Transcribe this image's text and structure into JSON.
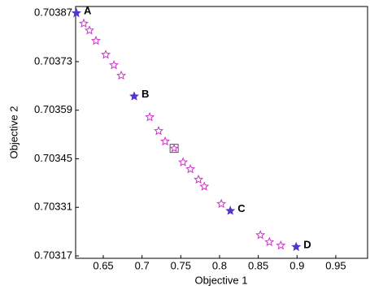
{
  "chart_data": {
    "type": "scatter",
    "xlabel": "Objective 1",
    "ylabel": "Objective 2",
    "xlim": [
      0.6143,
      0.991
    ],
    "ylim": [
      0.703163,
      0.703889
    ],
    "xticks": [
      0.65,
      0.7,
      0.75,
      0.8,
      0.85,
      0.9,
      0.95
    ],
    "yticks": [
      0.70317,
      0.70331,
      0.70345,
      0.70359,
      0.70373,
      0.70387
    ],
    "series": [
      {
        "color": "#cc33cc",
        "marker": "star-open",
        "x": [
          0.6248,
          0.6321,
          0.6405,
          0.6532,
          0.6637,
          0.6731,
          0.7099,
          0.7214,
          0.7298,
          0.7529,
          0.7624,
          0.7729,
          0.7803,
          0.8023,
          0.8527,
          0.8643,
          0.879
        ],
        "y": [
          0.70384,
          0.70382,
          0.70379,
          0.70375,
          0.70372,
          0.70369,
          0.70357,
          0.70353,
          0.7035,
          0.70344,
          0.70342,
          0.70339,
          0.70337,
          0.70332,
          0.70323,
          0.70321,
          0.7032
        ]
      },
      {
        "color": "#5533cc",
        "marker": "star-filled",
        "x": [
          0.6153,
          0.6899,
          0.8139,
          0.8989
        ],
        "y": [
          0.70387,
          0.70363,
          0.7033,
          0.703196
        ],
        "labels": [
          "A",
          "B",
          "C",
          "D"
        ]
      },
      {
        "color": "#cc33cc",
        "marker": "square-star",
        "x": [
          0.7414
        ],
        "y": [
          0.70348
        ]
      }
    ]
  }
}
